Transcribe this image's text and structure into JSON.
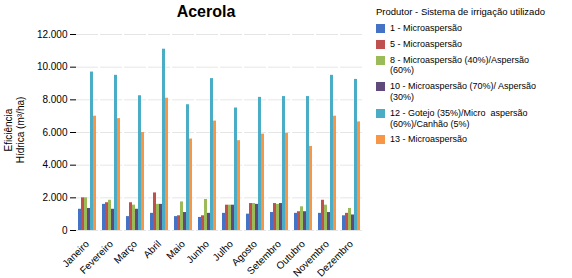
{
  "chart_data": {
    "type": "bar",
    "title": "Acerola",
    "ylabel": "Eficiência\nHídrica (m³/ha)",
    "categories": [
      "Janeiro",
      "Fevereiro",
      "Março",
      "Abril",
      "Maio",
      "Junho",
      "Julho",
      "Agosto",
      "Setembro",
      "Outubro",
      "Novembro",
      "Dezembro"
    ],
    "series": [
      {
        "name": "1 - Microaspersão",
        "color": "#4472C4",
        "values": [
          1300,
          1600,
          850,
          1050,
          850,
          800,
          1050,
          1000,
          1100,
          1050,
          1050,
          900
        ]
      },
      {
        "name": "5 - Microaspersão",
        "color": "#C0504D",
        "values": [
          2000,
          1700,
          1700,
          2300,
          900,
          900,
          1550,
          1650,
          1650,
          1150,
          1850,
          1050
        ]
      },
      {
        "name": "8 - Microaspersão (40%)/Aspersão\n(60%)",
        "color": "#9BBB59",
        "values": [
          2000,
          1850,
          1550,
          1600,
          1750,
          1900,
          1550,
          1650,
          1600,
          1450,
          1550,
          1350
        ]
      },
      {
        "name": "10 - Microaspersão (70%)/ Aspersão\n(30%)",
        "color": "#604A7B",
        "values": [
          1350,
          1300,
          1300,
          1600,
          1100,
          1050,
          1550,
          1600,
          1650,
          1150,
          1100,
          950
        ]
      },
      {
        "name": "12 - Gotejo (35%)/Micro  aspersão\n(60%)/Canhão (5%)",
        "color": "#4BACC6",
        "values": [
          9700,
          9500,
          8250,
          11100,
          7700,
          9300,
          7500,
          8150,
          8200,
          8200,
          9500,
          9250
        ]
      },
      {
        "name": "13 - Microaspersão",
        "color": "#F79646",
        "values": [
          7000,
          6850,
          6000,
          8100,
          5600,
          6700,
          5500,
          5900,
          5950,
          5150,
          7000,
          6650
        ]
      }
    ],
    "legend_title": "Produtor - Sistema de irrigação utilizado",
    "legend": "right",
    "ylim": [
      0,
      12000
    ],
    "yticks": [
      0,
      {
        "value": 2000,
        "label": "2.000"
      },
      {
        "value": 4000,
        "label": "4.000"
      },
      {
        "value": 6000,
        "label": "6.000"
      },
      {
        "value": 8000,
        "label": "8.000"
      },
      {
        "value": 10000,
        "label": "10.000"
      },
      {
        "value": 12000,
        "label": "12.000"
      }
    ],
    "grid": true
  }
}
